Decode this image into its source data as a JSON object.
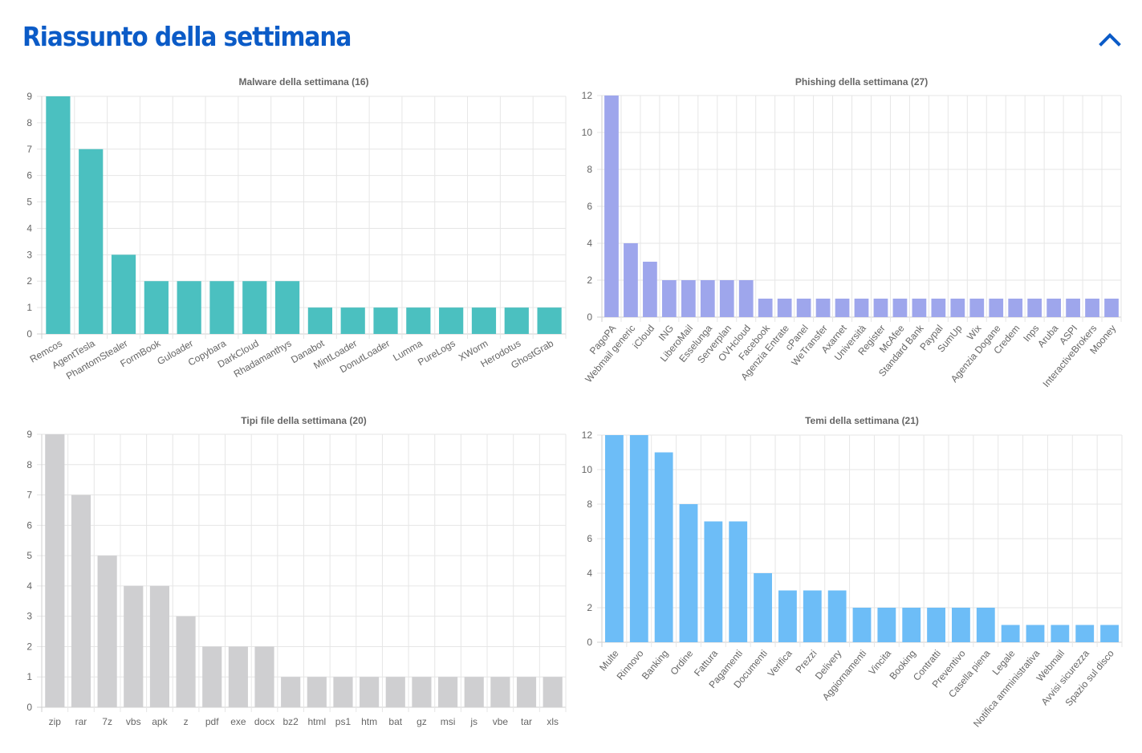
{
  "header": {
    "title": "Riassunto della settimana",
    "collapse_icon": "chevron-up-icon",
    "accent_color": "#0b5bc7"
  },
  "chart_data": [
    {
      "id": "malware",
      "type": "bar",
      "title": "Malware della settimana (16)",
      "color": "#4bc0c0",
      "ylim": [
        0,
        9
      ],
      "yticks": [
        0,
        1,
        2,
        3,
        4,
        5,
        6,
        7,
        8,
        9
      ],
      "label_rotation": -30,
      "grid": true,
      "categories": [
        "Remcos",
        "AgentTesla",
        "PhantomStealer",
        "FormBook",
        "Guloader",
        "Copybara",
        "DarkCloud",
        "Rhadamanthys",
        "Danabot",
        "MintLoader",
        "DonutLoader",
        "Lumma",
        "PureLogs",
        "XWorm",
        "Herodotus",
        "GhostGrab"
      ],
      "values": [
        9,
        7,
        3,
        2,
        2,
        2,
        2,
        2,
        1,
        1,
        1,
        1,
        1,
        1,
        1,
        1
      ]
    },
    {
      "id": "phishing",
      "type": "bar",
      "title": "Phishing della settimana (27)",
      "color": "#9ea6ec",
      "ylim": [
        0,
        12
      ],
      "yticks": [
        0,
        2,
        4,
        6,
        8,
        10,
        12
      ],
      "label_rotation": -50,
      "grid": true,
      "categories": [
        "PagoPA",
        "Webmail generic",
        "iCloud",
        "ING",
        "LiberoMail",
        "Esselunga",
        "Serverplan",
        "OVHcloud",
        "Facebook",
        "Agenzia Entrate",
        "cPanel",
        "WeTransfer",
        "Axarnet",
        "Università",
        "Register",
        "McAfee",
        "Standard Bank",
        "Paypal",
        "SumUp",
        "Wix",
        "Agenzia Dogane",
        "Credem",
        "Inps",
        "Aruba",
        "ASPI",
        "InteractiveBrokers",
        "Mooney"
      ],
      "values": [
        12,
        4,
        3,
        2,
        2,
        2,
        2,
        2,
        1,
        1,
        1,
        1,
        1,
        1,
        1,
        1,
        1,
        1,
        1,
        1,
        1,
        1,
        1,
        1,
        1,
        1,
        1
      ]
    },
    {
      "id": "filetypes",
      "type": "bar",
      "title": "Tipi file della settimana (20)",
      "color": "#cfcfd1",
      "ylim": [
        0,
        9
      ],
      "yticks": [
        0,
        1,
        2,
        3,
        4,
        5,
        6,
        7,
        8,
        9
      ],
      "label_rotation": 0,
      "grid": true,
      "categories": [
        "zip",
        "rar",
        "7z",
        "vbs",
        "apk",
        "z",
        "pdf",
        "exe",
        "docx",
        "bz2",
        "html",
        "ps1",
        "htm",
        "bat",
        "gz",
        "msi",
        "js",
        "vbe",
        "tar",
        "xls"
      ],
      "values": [
        9,
        7,
        5,
        4,
        4,
        3,
        2,
        2,
        2,
        1,
        1,
        1,
        1,
        1,
        1,
        1,
        1,
        1,
        1,
        1
      ]
    },
    {
      "id": "themes",
      "type": "bar",
      "title": "Temi della settimana (21)",
      "color": "#6dbdf7",
      "ylim": [
        0,
        12
      ],
      "yticks": [
        0,
        2,
        4,
        6,
        8,
        10,
        12
      ],
      "label_rotation": -50,
      "grid": true,
      "categories": [
        "Multe",
        "Rinnovo",
        "Banking",
        "Ordine",
        "Fattura",
        "Pagamenti",
        "Documenti",
        "Verifica",
        "Prezzi",
        "Delivery",
        "Aggiornamenti",
        "Vincita",
        "Booking",
        "Contratti",
        "Preventivo",
        "Casella piena",
        "Legale",
        "Notifica amministrativa",
        "Webmail",
        "Avvisi sicurezza",
        "Spazio sul disco"
      ],
      "values": [
        12,
        12,
        11,
        8,
        7,
        7,
        4,
        3,
        3,
        3,
        2,
        2,
        2,
        2,
        2,
        2,
        1,
        1,
        1,
        1,
        1
      ]
    }
  ]
}
